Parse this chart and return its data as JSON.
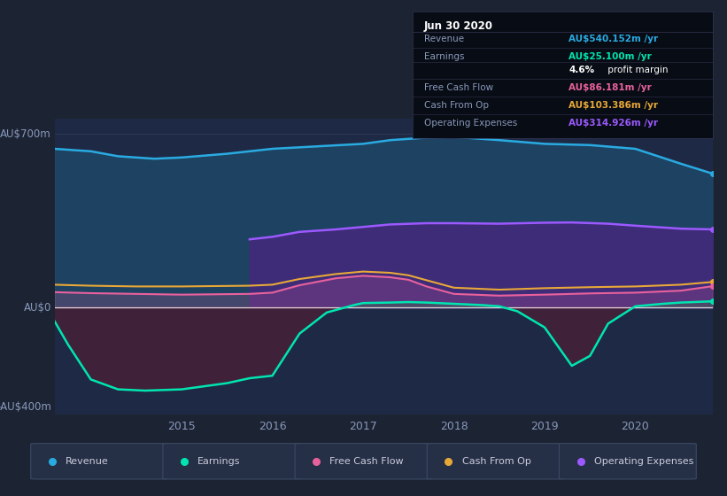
{
  "bg_color": "#1c2333",
  "plot_bg_color": "#1e2a45",
  "ylim": [
    -430,
    760
  ],
  "xlim": [
    2013.6,
    2020.85
  ],
  "xticks": [
    2015,
    2016,
    2017,
    2018,
    2019,
    2020
  ],
  "series": {
    "revenue": {
      "color": "#29abe2",
      "fill_color": "#1e4d6e",
      "x": [
        2013.6,
        2014.0,
        2014.3,
        2014.7,
        2015.0,
        2015.5,
        2016.0,
        2016.5,
        2017.0,
        2017.3,
        2017.7,
        2018.0,
        2018.5,
        2019.0,
        2019.5,
        2020.0,
        2020.5,
        2020.85
      ],
      "y": [
        640,
        630,
        610,
        600,
        605,
        620,
        640,
        650,
        660,
        675,
        685,
        688,
        675,
        660,
        655,
        640,
        580,
        540
      ]
    },
    "operating_expenses": {
      "color": "#9b59ff",
      "fill_color": "#4a2580",
      "x": [
        2015.75,
        2016.0,
        2016.3,
        2016.7,
        2017.0,
        2017.3,
        2017.7,
        2018.0,
        2018.5,
        2019.0,
        2019.3,
        2019.7,
        2020.0,
        2020.5,
        2020.85
      ],
      "y": [
        275,
        285,
        305,
        315,
        325,
        335,
        340,
        340,
        338,
        342,
        343,
        338,
        330,
        318,
        315
      ]
    },
    "cash_from_op": {
      "color": "#e8a838",
      "x": [
        2013.6,
        2014.0,
        2014.5,
        2015.0,
        2015.5,
        2015.75,
        2016.0,
        2016.3,
        2016.7,
        2017.0,
        2017.3,
        2017.5,
        2017.7,
        2018.0,
        2018.5,
        2019.0,
        2019.5,
        2020.0,
        2020.5,
        2020.85
      ],
      "y": [
        92,
        88,
        85,
        85,
        87,
        88,
        92,
        115,
        135,
        145,
        140,
        130,
        110,
        80,
        72,
        78,
        82,
        85,
        92,
        103
      ]
    },
    "free_cash_flow": {
      "color": "#e8619d",
      "x": [
        2013.6,
        2014.0,
        2014.5,
        2015.0,
        2015.5,
        2015.75,
        2016.0,
        2016.3,
        2016.7,
        2017.0,
        2017.3,
        2017.5,
        2017.7,
        2018.0,
        2018.5,
        2019.0,
        2019.5,
        2020.0,
        2020.5,
        2020.85
      ],
      "y": [
        62,
        58,
        55,
        52,
        54,
        55,
        60,
        90,
        118,
        128,
        122,
        112,
        85,
        55,
        48,
        52,
        57,
        60,
        68,
        86
      ]
    },
    "earnings": {
      "color": "#00e5b0",
      "fill_color_pos": "#1a5c4a",
      "fill_color_neg": "#5c1a30",
      "x": [
        2013.6,
        2013.75,
        2014.0,
        2014.3,
        2014.6,
        2015.0,
        2015.5,
        2015.75,
        2016.0,
        2016.3,
        2016.6,
        2016.9,
        2017.0,
        2017.3,
        2017.5,
        2017.7,
        2018.0,
        2018.3,
        2018.5,
        2018.7,
        2019.0,
        2019.3,
        2019.5,
        2019.7,
        2020.0,
        2020.3,
        2020.5,
        2020.85
      ],
      "y": [
        -55,
        -150,
        -290,
        -330,
        -335,
        -330,
        -305,
        -285,
        -275,
        -105,
        -20,
        10,
        18,
        20,
        22,
        20,
        15,
        10,
        5,
        -15,
        -80,
        -235,
        -195,
        -65,
        5,
        15,
        20,
        25
      ]
    }
  },
  "legend": [
    {
      "label": "Revenue",
      "color": "#29abe2"
    },
    {
      "label": "Earnings",
      "color": "#00e5b0"
    },
    {
      "label": "Free Cash Flow",
      "color": "#e8619d"
    },
    {
      "label": "Cash From Op",
      "color": "#e8a838"
    },
    {
      "label": "Operating Expenses",
      "color": "#9b59ff"
    }
  ],
  "info_box": {
    "title": "Jun 30 2020",
    "rows": [
      {
        "label": "Revenue",
        "value": "AU$540.152m /yr",
        "value_color": "#29abe2"
      },
      {
        "label": "Earnings",
        "value": "AU$25.100m /yr",
        "value_color": "#00e5b0"
      },
      {
        "label": "",
        "value_bold": "4.6%",
        "value_rest": " profit margin",
        "value_color": "#ffffff"
      },
      {
        "label": "Free Cash Flow",
        "value": "AU$86.181m /yr",
        "value_color": "#e8619d"
      },
      {
        "label": "Cash From Op",
        "value": "AU$103.386m /yr",
        "value_color": "#e8a838"
      },
      {
        "label": "Operating Expenses",
        "value": "AU$314.926m /yr",
        "value_color": "#9b59ff"
      }
    ]
  }
}
